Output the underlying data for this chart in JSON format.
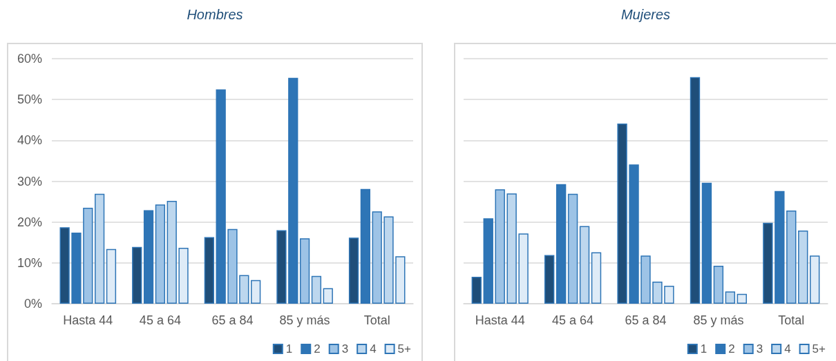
{
  "chart_data": [
    {
      "type": "bar",
      "title": "Hombres",
      "categories": [
        "Hasta 44",
        "45 a 64",
        "65 a 84",
        "85 y más",
        "Total"
      ],
      "series": [
        {
          "name": "1",
          "color": "#1f4e79",
          "values": [
            18.7,
            13.9,
            16.3,
            18.0,
            16.2
          ]
        },
        {
          "name": "2",
          "color": "#2e75b6",
          "values": [
            17.4,
            22.9,
            52.5,
            55.3,
            28.1
          ]
        },
        {
          "name": "3",
          "color": "#9dc3e6",
          "values": [
            23.5,
            24.3,
            18.3,
            16.0,
            22.6
          ]
        },
        {
          "name": "4",
          "color": "#bdd7ee",
          "values": [
            26.9,
            25.2,
            7.0,
            6.8,
            21.4
          ]
        },
        {
          "name": "5+",
          "color": "#deebf7",
          "values": [
            13.4,
            13.7,
            5.8,
            3.8,
            11.6
          ]
        }
      ],
      "ylim": [
        0,
        60
      ],
      "yticks": [
        {
          "value": 0,
          "label": "0%"
        },
        {
          "value": 10,
          "label": "10%"
        },
        {
          "value": 20,
          "label": "20%"
        },
        {
          "value": 30,
          "label": "30%"
        },
        {
          "value": 40,
          "label": "40%"
        },
        {
          "value": 50,
          "label": "50%"
        },
        {
          "value": 60,
          "label": "60%"
        }
      ],
      "grid": "y",
      "legend": "bottom right"
    },
    {
      "type": "bar",
      "title": "Mujeres",
      "categories": [
        "Hasta 44",
        "45 a 64",
        "65 a 84",
        "85 y más",
        "Total"
      ],
      "series": [
        {
          "name": "1",
          "color": "#1f4e79",
          "values": [
            6.6,
            11.9,
            44.1,
            55.5,
            19.8
          ]
        },
        {
          "name": "2",
          "color": "#2e75b6",
          "values": [
            20.9,
            29.3,
            34.1,
            29.6,
            27.6
          ]
        },
        {
          "name": "3",
          "color": "#9dc3e6",
          "values": [
            28.0,
            26.9,
            11.8,
            9.3,
            22.8
          ]
        },
        {
          "name": "4",
          "color": "#bdd7ee",
          "values": [
            27.0,
            19.0,
            5.4,
            3.0,
            17.9
          ]
        },
        {
          "name": "5+",
          "color": "#deebf7",
          "values": [
            17.2,
            12.6,
            4.4,
            2.4,
            11.8
          ]
        }
      ],
      "ylim": [
        0,
        60
      ],
      "yticks": [
        0,
        10,
        20,
        30,
        40,
        50,
        60
      ],
      "grid": "y",
      "legend": "bottom right",
      "tick_labels": "x"
    }
  ]
}
